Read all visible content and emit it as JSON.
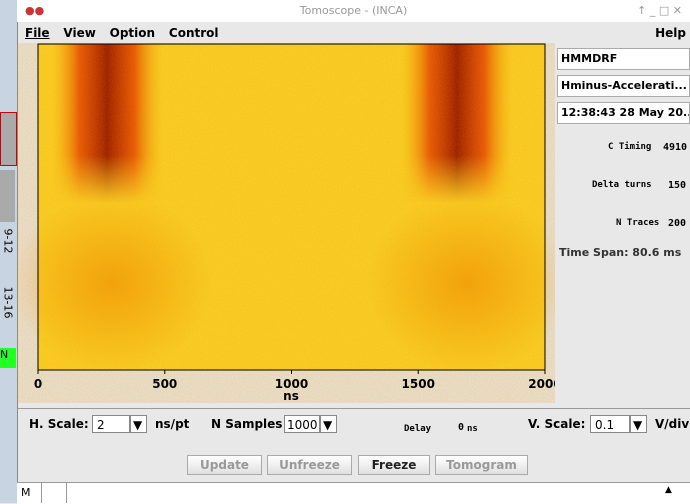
{
  "window": {
    "title": "Tomoscope - (INCA)"
  },
  "menu": {
    "items": [
      "File",
      "View",
      "Option",
      "Control"
    ],
    "help": "Help"
  },
  "sidebar": {
    "labels": [
      "9-12",
      "13-16",
      "N"
    ]
  },
  "plot": {
    "xlim": [
      0,
      2000
    ],
    "xticks": [
      0,
      500,
      1000,
      1500,
      2000
    ],
    "xlabel": "ns"
  },
  "panel": {
    "device": "HMMDRF",
    "cycle": "Hminus-Accelerati...",
    "timestamp": "12:38:43 28 May 20...",
    "c_timing": {
      "label": "C Timing",
      "value": "4910"
    },
    "delta_turns": {
      "label": "Delta turns",
      "value": "150"
    },
    "n_traces": {
      "label": "N Traces",
      "value": "200"
    },
    "time_span": "Time Span: 80.6 ms"
  },
  "controls": {
    "h_scale": {
      "label": "H. Scale:",
      "value": "2",
      "unit": "ns/pt"
    },
    "n_samples": {
      "label": "N Samples",
      "value": "1000"
    },
    "delay": {
      "label": "Delay",
      "value": "0",
      "unit": "ns"
    },
    "v_scale": {
      "label": "V. Scale:",
      "value": "0.1",
      "unit": "V/div"
    }
  },
  "buttons": [
    "Update",
    "Unfreeze",
    "Freeze",
    "Tomogram"
  ],
  "status": {
    "mode": "M"
  }
}
